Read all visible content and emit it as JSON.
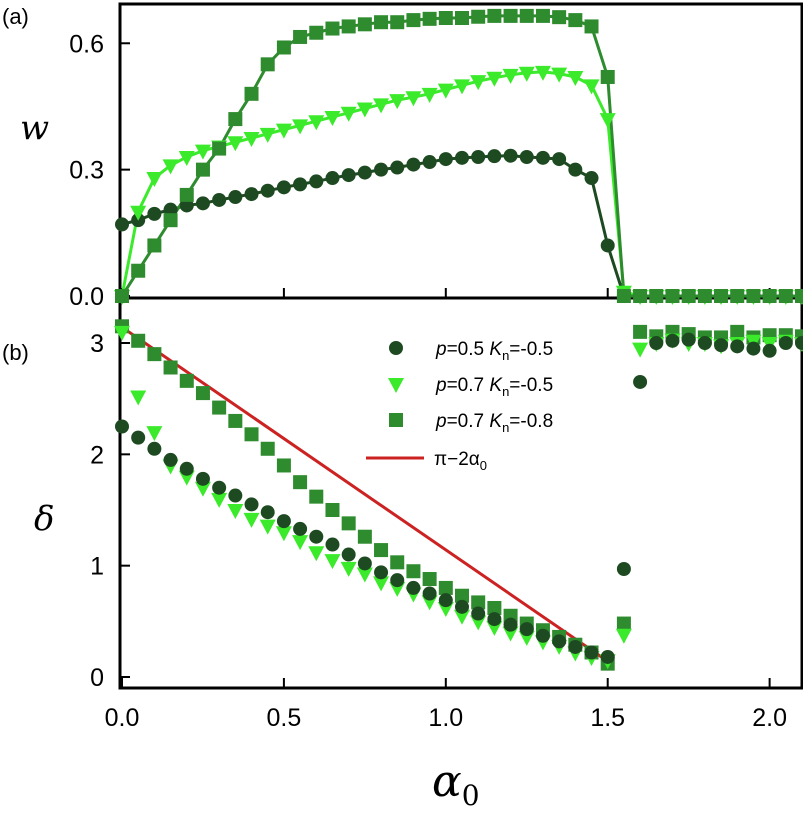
{
  "chart_data": [
    {
      "panel": "(a)",
      "type": "line",
      "ylabel": "w",
      "xlabel": "",
      "xlim": [
        0,
        2.1
      ],
      "ylim": [
        0,
        0.66
      ],
      "yticks": [
        "0.0",
        "0.3",
        "0.6"
      ],
      "ytick_values": [
        0,
        0.3,
        0.6
      ],
      "series": [
        {
          "name": "p=0.5 Kn=-0.5",
          "marker": "circle",
          "color": "#1e4a22",
          "x": [
            0.0,
            0.05,
            0.1,
            0.15,
            0.2,
            0.25,
            0.3,
            0.35,
            0.4,
            0.45,
            0.5,
            0.55,
            0.6,
            0.65,
            0.7,
            0.75,
            0.8,
            0.85,
            0.9,
            0.95,
            1.0,
            1.05,
            1.1,
            1.15,
            1.2,
            1.25,
            1.3,
            1.35,
            1.4,
            1.45,
            1.5,
            1.55,
            1.6,
            1.65,
            1.7,
            1.75,
            1.8,
            1.85,
            1.9,
            1.95,
            2.0,
            2.05,
            2.1
          ],
          "y": [
            0.17,
            0.18,
            0.195,
            0.205,
            0.215,
            0.22,
            0.228,
            0.235,
            0.242,
            0.25,
            0.258,
            0.265,
            0.272,
            0.28,
            0.287,
            0.293,
            0.3,
            0.305,
            0.312,
            0.318,
            0.325,
            0.328,
            0.33,
            0.332,
            0.333,
            0.33,
            0.328,
            0.325,
            0.3,
            0.28,
            0.12,
            0.0,
            0.0,
            0.0,
            0.0,
            0.0,
            0.0,
            0.0,
            0.0,
            0.0,
            0.0,
            0.0,
            0.0
          ]
        },
        {
          "name": "p=0.7 Kn=-0.5",
          "marker": "triangle-down",
          "color": "#3bea2b",
          "x": [
            0.0,
            0.05,
            0.1,
            0.15,
            0.2,
            0.25,
            0.3,
            0.35,
            0.4,
            0.45,
            0.5,
            0.55,
            0.6,
            0.65,
            0.7,
            0.75,
            0.8,
            0.85,
            0.9,
            0.95,
            1.0,
            1.05,
            1.1,
            1.15,
            1.2,
            1.25,
            1.3,
            1.35,
            1.4,
            1.45,
            1.5,
            1.55,
            1.6,
            1.65,
            1.7,
            1.75,
            1.8,
            1.85,
            1.9,
            1.95,
            2.0,
            2.05,
            2.1
          ],
          "y": [
            0.0,
            0.2,
            0.28,
            0.31,
            0.33,
            0.345,
            0.355,
            0.365,
            0.375,
            0.385,
            0.395,
            0.405,
            0.415,
            0.425,
            0.435,
            0.445,
            0.455,
            0.465,
            0.472,
            0.48,
            0.49,
            0.5,
            0.51,
            0.518,
            0.525,
            0.53,
            0.532,
            0.528,
            0.52,
            0.5,
            0.42,
            0.01,
            0.0,
            0.0,
            0.0,
            0.0,
            0.0,
            0.0,
            0.0,
            0.0,
            0.0,
            0.0,
            0.0
          ]
        },
        {
          "name": "p=0.7 Kn=-0.8",
          "marker": "square",
          "color": "#2e8b2e",
          "x": [
            0.0,
            0.05,
            0.1,
            0.15,
            0.2,
            0.25,
            0.3,
            0.35,
            0.4,
            0.45,
            0.5,
            0.55,
            0.6,
            0.65,
            0.7,
            0.75,
            0.8,
            0.85,
            0.9,
            0.95,
            1.0,
            1.05,
            1.1,
            1.15,
            1.2,
            1.25,
            1.3,
            1.35,
            1.4,
            1.45,
            1.5,
            1.55,
            1.6,
            1.65,
            1.7,
            1.75,
            1.8,
            1.85,
            1.9,
            1.95,
            2.0,
            2.05,
            2.1
          ],
          "y": [
            0.0,
            0.06,
            0.12,
            0.18,
            0.24,
            0.3,
            0.35,
            0.42,
            0.48,
            0.55,
            0.59,
            0.615,
            0.625,
            0.635,
            0.64,
            0.645,
            0.65,
            0.65,
            0.655,
            0.658,
            0.66,
            0.66,
            0.663,
            0.665,
            0.665,
            0.665,
            0.665,
            0.662,
            0.655,
            0.64,
            0.52,
            0.0,
            0.0,
            0.0,
            0.0,
            0.0,
            0.0,
            0.0,
            0.0,
            0.0,
            0.0,
            0.0,
            0.0
          ]
        }
      ]
    },
    {
      "panel": "(b)",
      "type": "scatter",
      "ylabel": "δ",
      "xlabel": "α0",
      "xlim": [
        0,
        2.1
      ],
      "ylim": [
        -0.08,
        3.25
      ],
      "yticks": [
        "0",
        "1",
        "2",
        "3"
      ],
      "ytick_values": [
        0,
        1,
        2,
        3
      ],
      "xticks": [
        "0.0",
        "0.5",
        "1.0",
        "1.5",
        "2.0"
      ],
      "xtick_values": [
        0,
        0.5,
        1.0,
        1.5,
        2.0
      ],
      "legend": {
        "placement": "top-right",
        "entries": [
          {
            "p": "p",
            "eq1": "=0.5 ",
            "k": "K",
            "sub": "n",
            "eq2": "=-0.5",
            "marker": "circle",
            "color": "#1e4a22"
          },
          {
            "p": "p",
            "eq1": "=0.7 ",
            "k": "K",
            "sub": "n",
            "eq2": "=-0.5",
            "marker": "triangle-down",
            "color": "#3bea2b"
          },
          {
            "p": "p",
            "eq1": "=0.7 ",
            "k": "K",
            "sub": "n",
            "eq2": "=-0.8",
            "marker": "square",
            "color": "#2e8b2e"
          },
          {
            "text": "π−2α",
            "sub": "0",
            "marker": "line",
            "color": "#cc2222"
          }
        ]
      },
      "reference_line": {
        "name": "π−2α0",
        "x": [
          0.0,
          1.5
        ],
        "y": [
          3.1416,
          0.1416
        ],
        "color": "#cc2222"
      },
      "series": [
        {
          "name": "p=0.5 Kn=-0.5",
          "marker": "circle",
          "color": "#1e4a22",
          "x": [
            0.0,
            0.05,
            0.1,
            0.15,
            0.2,
            0.25,
            0.3,
            0.35,
            0.4,
            0.45,
            0.5,
            0.55,
            0.6,
            0.65,
            0.7,
            0.75,
            0.8,
            0.85,
            0.9,
            0.95,
            1.0,
            1.05,
            1.1,
            1.15,
            1.2,
            1.25,
            1.3,
            1.35,
            1.4,
            1.45,
            1.5,
            1.55,
            1.6,
            1.65,
            1.7,
            1.75,
            1.8,
            1.85,
            1.9,
            1.95,
            2.0,
            2.05,
            2.1
          ],
          "y": [
            2.25,
            2.15,
            2.05,
            1.95,
            1.87,
            1.78,
            1.7,
            1.63,
            1.55,
            1.48,
            1.4,
            1.33,
            1.26,
            1.19,
            1.1,
            1.02,
            0.94,
            0.87,
            0.8,
            0.75,
            0.69,
            0.63,
            0.57,
            0.52,
            0.47,
            0.43,
            0.37,
            0.32,
            0.27,
            0.22,
            0.18,
            0.97,
            2.65,
            3.0,
            3.02,
            3.03,
            3.0,
            2.98,
            2.97,
            2.95,
            2.93,
            3.0,
            3.0
          ]
        },
        {
          "name": "p=0.7 Kn=-0.5",
          "marker": "triangle-down",
          "color": "#3bea2b",
          "x": [
            0.0,
            0.05,
            0.1,
            0.15,
            0.2,
            0.25,
            0.3,
            0.35,
            0.4,
            0.45,
            0.5,
            0.55,
            0.6,
            0.65,
            0.7,
            0.75,
            0.8,
            0.85,
            0.9,
            0.95,
            1.0,
            1.05,
            1.1,
            1.15,
            1.2,
            1.25,
            1.3,
            1.35,
            1.4,
            1.45,
            1.5,
            1.55,
            1.6,
            1.65,
            1.7,
            1.75,
            1.8,
            1.85,
            1.9,
            1.95,
            2.0,
            2.05,
            2.1
          ],
          "y": [
            3.1,
            2.52,
            2.2,
            1.9,
            1.8,
            1.7,
            1.6,
            1.5,
            1.42,
            1.36,
            1.3,
            1.22,
            1.12,
            1.05,
            0.98,
            0.93,
            0.85,
            0.8,
            0.75,
            0.68,
            0.62,
            0.55,
            0.5,
            0.45,
            0.4,
            0.36,
            0.32,
            0.28,
            0.22,
            0.18,
            0.15,
            0.38,
            2.95,
            3.0,
            3.03,
            3.0,
            3.0,
            2.98,
            3.0,
            3.02,
            3.0,
            3.02,
            3.0
          ]
        },
        {
          "name": "p=0.7 Kn=-0.8",
          "marker": "square",
          "color": "#2e8b2e",
          "x": [
            0.0,
            0.05,
            0.1,
            0.15,
            0.2,
            0.25,
            0.3,
            0.35,
            0.4,
            0.45,
            0.5,
            0.55,
            0.6,
            0.65,
            0.7,
            0.75,
            0.8,
            0.85,
            0.9,
            0.95,
            1.0,
            1.05,
            1.1,
            1.15,
            1.2,
            1.25,
            1.3,
            1.35,
            1.4,
            1.45,
            1.5,
            1.55,
            1.6,
            1.65,
            1.7,
            1.75,
            1.8,
            1.85,
            1.9,
            1.95,
            2.0,
            2.05,
            2.1
          ],
          "y": [
            3.15,
            3.02,
            2.9,
            2.78,
            2.66,
            2.55,
            2.42,
            2.3,
            2.18,
            2.05,
            1.9,
            1.75,
            1.62,
            1.5,
            1.38,
            1.26,
            1.14,
            1.03,
            0.95,
            0.88,
            0.8,
            0.73,
            0.67,
            0.62,
            0.55,
            0.48,
            0.42,
            0.36,
            0.29,
            0.22,
            0.12,
            0.48,
            3.1,
            3.06,
            3.1,
            3.08,
            3.05,
            3.05,
            3.1,
            3.05,
            3.07,
            3.07,
            3.06
          ]
        }
      ]
    }
  ],
  "panel_labels": {
    "a": "(a)",
    "b": "(b)"
  },
  "axis_labels": {
    "w": "w",
    "delta": "δ",
    "alpha": "α",
    "alpha_sub": "0"
  }
}
